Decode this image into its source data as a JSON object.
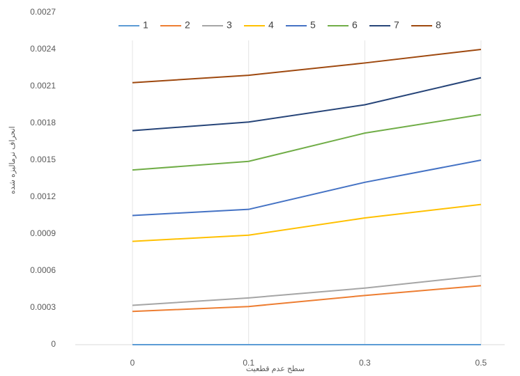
{
  "chart_data": {
    "type": "line",
    "x_label": "سطح عدم قطعیت",
    "y_label": "انحراف نرمالیزه شده",
    "categories": [
      "0",
      "0.1",
      "0.3",
      "0.5"
    ],
    "series": [
      {
        "name": "1",
        "color": "#5b9bd5",
        "values": [
          0,
          0,
          0,
          0
        ]
      },
      {
        "name": "2",
        "color": "#ed7d31",
        "values": [
          0.00027,
          0.00031,
          0.0004,
          0.00048
        ]
      },
      {
        "name": "3",
        "color": "#a5a5a5",
        "values": [
          0.00032,
          0.00038,
          0.00046,
          0.00056
        ]
      },
      {
        "name": "4",
        "color": "#ffc000",
        "values": [
          0.00084,
          0.00089,
          0.00103,
          0.00114
        ]
      },
      {
        "name": "5",
        "color": "#4472c4",
        "values": [
          0.00105,
          0.0011,
          0.00132,
          0.0015
        ]
      },
      {
        "name": "6",
        "color": "#70ad47",
        "values": [
          0.00142,
          0.00149,
          0.00172,
          0.00187
        ]
      },
      {
        "name": "7",
        "color": "#264478",
        "values": [
          0.00174,
          0.00181,
          0.00195,
          0.00217
        ]
      },
      {
        "name": "8",
        "color": "#9e480e",
        "values": [
          0.00213,
          0.00219,
          0.00229,
          0.0024
        ]
      }
    ],
    "ylim": [
      0,
      0.0027
    ],
    "yticks": [
      0,
      0.0003,
      0.0006,
      0.0009,
      0.0012,
      0.0015,
      0.0018,
      0.0021,
      0.0024,
      0.0027
    ],
    "grid": true,
    "legend": "top"
  }
}
